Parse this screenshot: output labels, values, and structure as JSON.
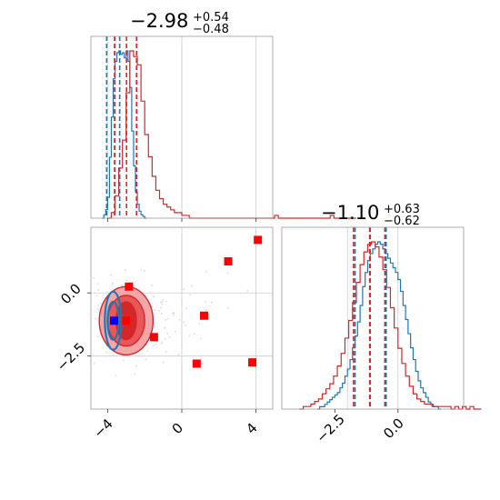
{
  "colors": {
    "blue": "#1f77b4",
    "red": "#d62728",
    "red_fill_light": "#f4a6a8",
    "red_fill_mid": "#e8575a",
    "red_fill_dark": "#d62728",
    "marker_red": "#ff0000",
    "marker_blue": "#0000ff",
    "scatter_grey": "#b8c4d6"
  },
  "chart_data": [
    {
      "type": "histogram",
      "panel": "marginal-param-1",
      "title": "-2.98",
      "title_sup": "+0.54",
      "title_sub": "-0.48",
      "title_main_display": "−2.98",
      "title_sup_display": "+0.54",
      "title_sub_display": "−0.48",
      "xlim": [
        -4.9,
        4.9
      ],
      "series": [
        {
          "color": "blue",
          "bin_width": 0.1,
          "x_start": -4.3,
          "counts": [
            0,
            2,
            5,
            12,
            35,
            58,
            80,
            90,
            95,
            96,
            94,
            95,
            92,
            96,
            90,
            75,
            50,
            30,
            15,
            8,
            4,
            2,
            1,
            0
          ]
        },
        {
          "color": "red",
          "bin_width": 0.2,
          "x_start": -4.0,
          "counts": [
            0,
            2,
            8,
            18,
            28,
            45,
            60,
            58,
            55,
            42,
            30,
            22,
            15,
            10,
            7,
            5,
            4,
            3,
            2,
            2,
            1,
            1,
            0,
            0,
            0,
            0,
            0,
            0,
            0,
            0,
            0,
            0,
            0,
            0,
            0,
            0,
            0,
            0,
            0,
            0,
            0,
            0,
            0,
            0,
            0,
            1,
            0,
            0,
            0,
            0,
            0,
            0,
            0,
            0,
            0,
            0,
            0,
            0,
            0,
            0,
            1,
            0,
            0,
            0,
            0,
            0,
            0
          ]
        }
      ],
      "quantile_lines": [
        {
          "color": "blue",
          "x": [
            -4.05,
            -3.62,
            -3.35
          ]
        },
        {
          "color": "red",
          "x": [
            -3.62,
            -2.98,
            -2.44
          ]
        }
      ],
      "truth_lines_x": [
        -4.0,
        0.0,
        4.0
      ]
    },
    {
      "type": "histogram",
      "panel": "marginal-param-2",
      "title": "-1.10",
      "title_sup": "+0.63",
      "title_sub": "-0.62",
      "title_main_display": "−1.10",
      "title_sup_display": "+0.63",
      "title_sub_display": "−0.62",
      "xlim": [
        -4.6,
        2.6
      ],
      "xticks": [
        -2.5,
        0.0
      ],
      "xtick_labels": [
        "−2.5",
        "0.0"
      ],
      "series": [
        {
          "color": "blue",
          "bin_width": 0.1,
          "x_start": -3.2,
          "counts": [
            0,
            1,
            1,
            2,
            3,
            4,
            5,
            6,
            7,
            9,
            11,
            14,
            17,
            21,
            26,
            31,
            37,
            44,
            52,
            58,
            63,
            66,
            68,
            70,
            71,
            70,
            68,
            66,
            64,
            62,
            60,
            58,
            55,
            50,
            44,
            38,
            32,
            26,
            21,
            16,
            12,
            9,
            7,
            5,
            3,
            2,
            1,
            1,
            0
          ]
        },
        {
          "color": "red",
          "bin_width": 0.15,
          "x_start": -3.9,
          "counts": [
            0,
            1,
            1,
            2,
            3,
            4,
            6,
            8,
            10,
            13,
            17,
            22,
            28,
            35,
            42,
            50,
            57,
            62,
            65,
            66,
            64,
            60,
            55,
            48,
            40,
            32,
            24,
            18,
            13,
            9,
            6,
            4,
            3,
            2,
            2,
            1,
            1,
            1,
            1,
            1,
            0,
            1,
            0,
            1,
            0,
            1,
            0,
            0
          ]
        }
      ],
      "quantile_lines": [
        {
          "color": "blue",
          "x": [
            -1.7,
            -1.1,
            -0.47
          ]
        },
        {
          "color": "red",
          "x": [
            -1.76,
            -1.12,
            -0.52
          ]
        }
      ],
      "truth_lines_x": [
        -2.0,
        0.0
      ]
    },
    {
      "type": "scatter",
      "panel": "joint-param-1-vs-param-2",
      "xlim": [
        -4.9,
        4.9
      ],
      "ylim": [
        -4.6,
        2.6
      ],
      "xticks": [
        -4,
        0,
        4
      ],
      "xtick_labels": [
        "−4",
        "0",
        "4"
      ],
      "yticks": [
        0.0,
        -2.5
      ],
      "ytick_labels": [
        "0.0",
        "−2.5"
      ],
      "grid_x": [
        0.0,
        4.0
      ],
      "grid_y": [
        0.0,
        -2.5
      ],
      "red_contours": {
        "center": [
          -3.0,
          -1.1
        ],
        "levels": [
          {
            "rx": 1.45,
            "ry": 1.35,
            "tone": "light"
          },
          {
            "rx": 1.0,
            "ry": 1.0,
            "tone": "mid"
          },
          {
            "rx": 0.55,
            "ry": 0.75,
            "tone": "dark"
          }
        ]
      },
      "blue_contours": {
        "center": [
          -3.7,
          -1.1
        ],
        "levels": [
          {
            "rx": 0.45,
            "ry": 1.15
          },
          {
            "rx": 0.3,
            "ry": 0.75
          }
        ]
      },
      "red_markers": [
        {
          "x": 4.1,
          "y": 2.1
        },
        {
          "x": 2.5,
          "y": 1.25
        },
        {
          "x": -2.85,
          "y": 0.25
        },
        {
          "x": 1.2,
          "y": -0.9
        },
        {
          "x": -3.0,
          "y": -1.1
        },
        {
          "x": -1.5,
          "y": -1.75
        },
        {
          "x": 0.8,
          "y": -2.8
        },
        {
          "x": 3.8,
          "y": -2.75
        }
      ],
      "blue_markers": [
        {
          "x": -3.65,
          "y": -1.1
        }
      ]
    }
  ]
}
